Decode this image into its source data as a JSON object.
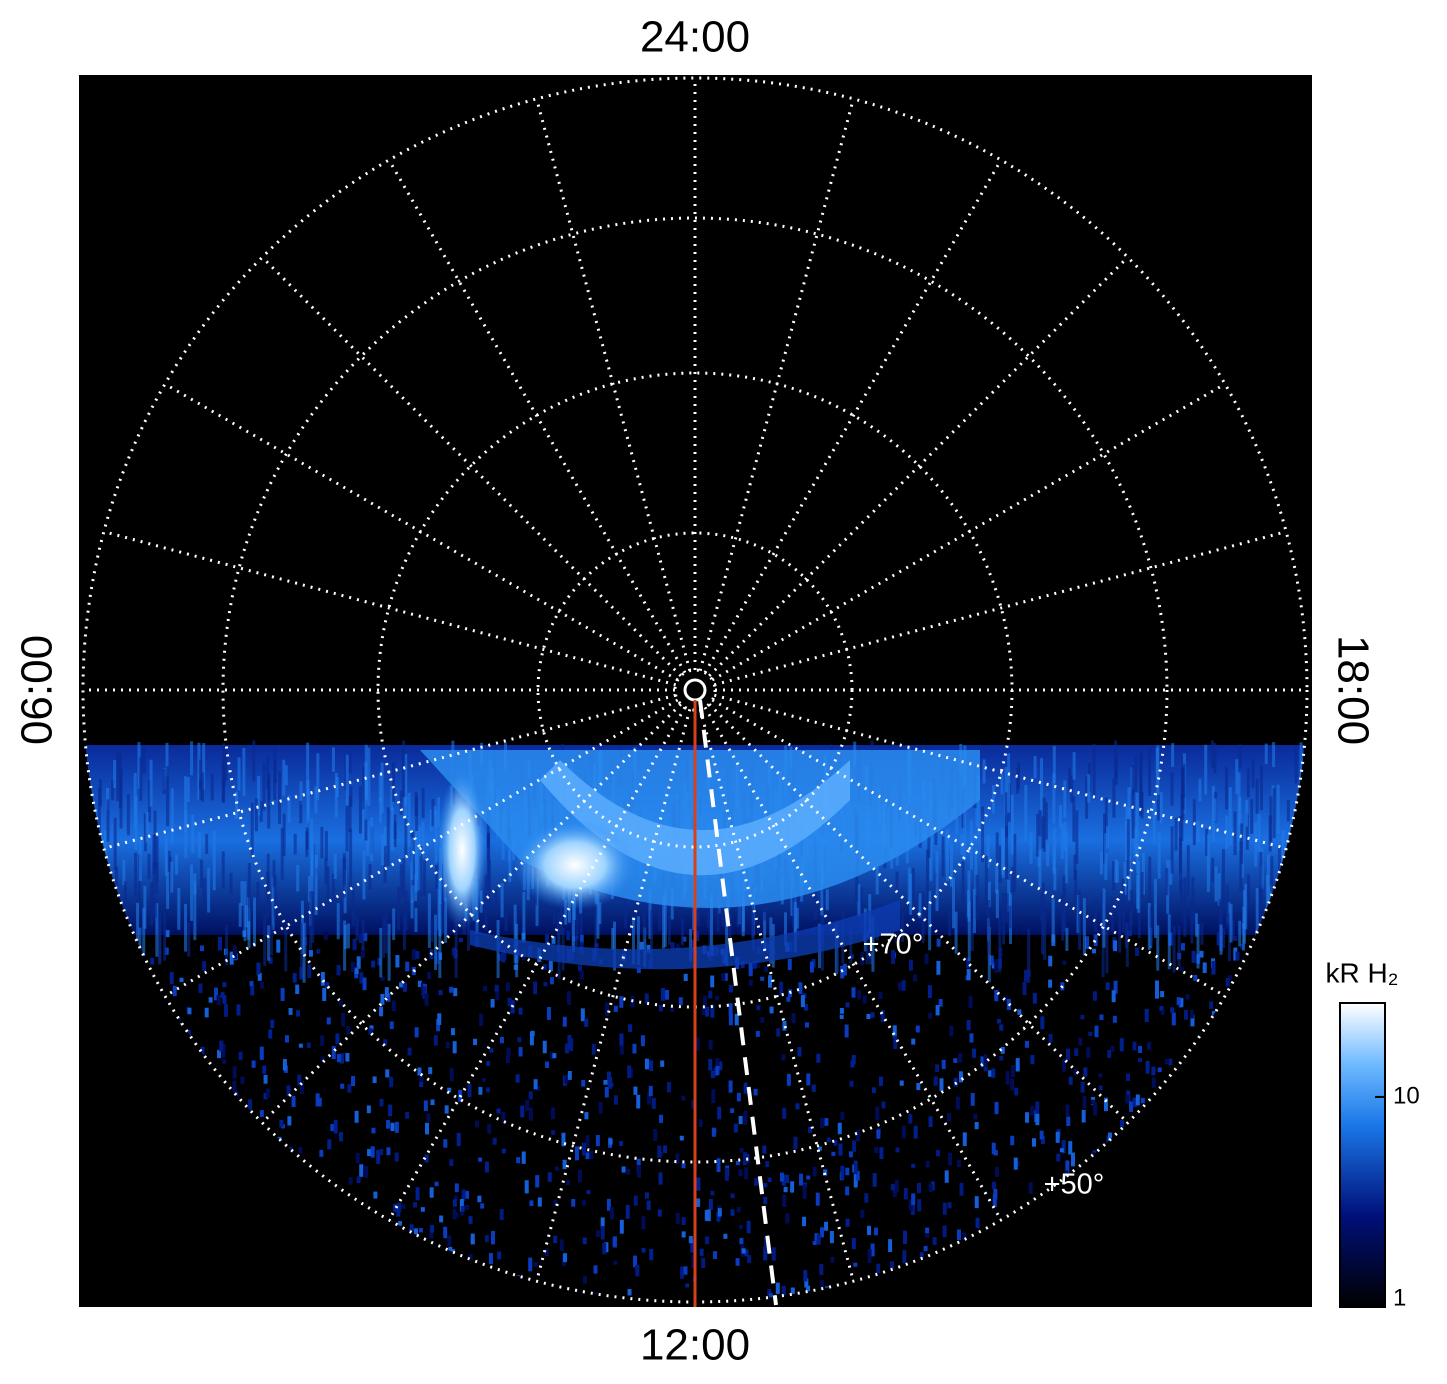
{
  "labels": {
    "top": "24:00",
    "bottom": "12:00",
    "left": "06:00",
    "right": "18:00"
  },
  "latitudes": [
    "+70°",
    "+50°"
  ],
  "colorbar": {
    "label": "kR H₂",
    "lim": [
      1,
      28
    ],
    "ticks": [
      1,
      10
    ],
    "log": true
  }
}
